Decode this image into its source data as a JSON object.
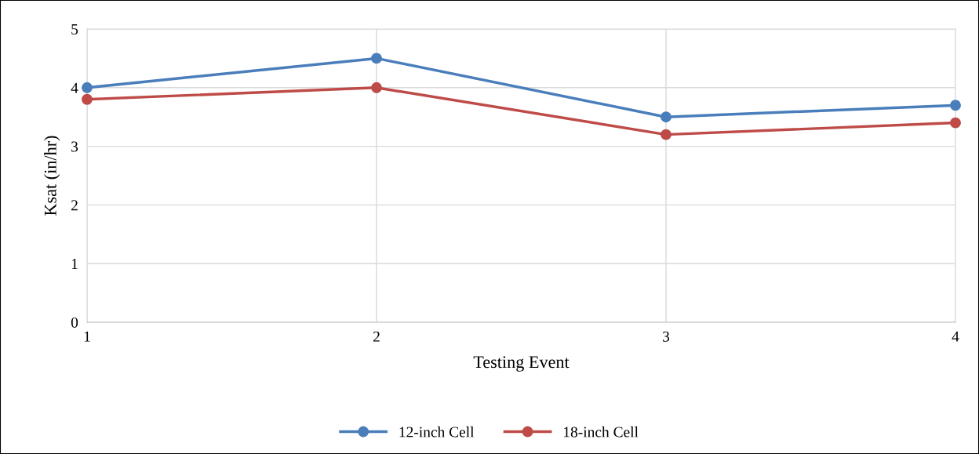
{
  "chart_data": {
    "type": "line",
    "xlabel": "Testing Event",
    "ylabel": "Ksat (in/hr)",
    "x": [
      1,
      2,
      3,
      4
    ],
    "series": [
      {
        "name": "12-inch Cell",
        "color": "#4a7ebb",
        "values": [
          4.0,
          4.5,
          3.5,
          3.7
        ]
      },
      {
        "name": "18-inch Cell",
        "color": "#be4b48",
        "values": [
          3.8,
          4.0,
          3.2,
          3.4
        ]
      }
    ],
    "xlim": [
      1,
      4
    ],
    "xticks": [
      1,
      2,
      3,
      4
    ],
    "ylim": [
      0,
      5
    ],
    "yticks": [
      0,
      1,
      2,
      3,
      4,
      5
    ],
    "grid": true,
    "legend": "bottom",
    "marker": "circle",
    "line_style": "solid"
  }
}
